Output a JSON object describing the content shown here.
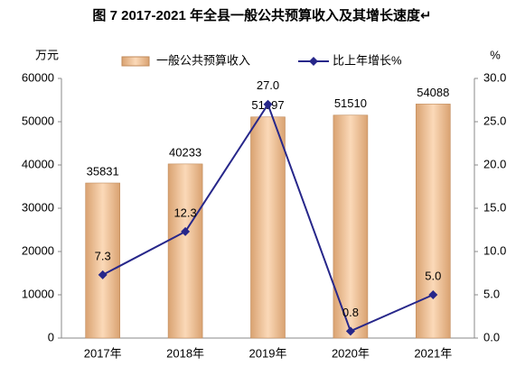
{
  "chart_data": {
    "type": "bar",
    "title": "图 7 2017-2021 年全县一般公共预算收入及其增长速度↵",
    "y_label": "万元",
    "y2_label": "%",
    "categories": [
      "2017年",
      "2018年",
      "2019年",
      "2020年",
      "2021年"
    ],
    "series": [
      {
        "name": "一般公共预算收入",
        "type": "bar",
        "color": "#f2c196",
        "values": [
          35831,
          40233,
          51097,
          51510,
          54088
        ]
      },
      {
        "name": "比上年增长%",
        "type": "line",
        "axis": "y2",
        "color": "#27278a",
        "values": [
          7.3,
          12.3,
          27.0,
          0.8,
          5.0
        ],
        "value_labels": [
          "7.3",
          "12.3",
          "27.0",
          "0.8",
          "5.0"
        ]
      }
    ],
    "ylim": [
      0,
      60000
    ],
    "yticks": [
      0,
      10000,
      20000,
      30000,
      40000,
      50000,
      60000
    ],
    "y2lim": [
      0,
      30
    ],
    "y2ticks": [
      {
        "value": 0,
        "label": "0.0"
      },
      {
        "value": 5,
        "label": "5.0"
      },
      {
        "value": 10,
        "label": "10.0"
      },
      {
        "value": 15,
        "label": "15.0"
      },
      {
        "value": 20,
        "label": "20.0"
      },
      {
        "value": 25,
        "label": "25.0"
      },
      {
        "value": 30,
        "label": "30.0"
      }
    ],
    "grid": false,
    "legend": "top"
  }
}
